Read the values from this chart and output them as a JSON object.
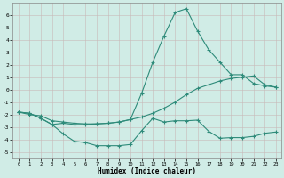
{
  "xlabel": "Humidex (Indice chaleur)",
  "line_color": "#2e8b7a",
  "bg_color": "#d0ece6",
  "grid_color": "#b8d8d0",
  "ylim": [
    -5.5,
    7.0
  ],
  "xlim": [
    -0.5,
    23.5
  ],
  "yticks": [
    -5,
    -4,
    -3,
    -2,
    -1,
    0,
    1,
    2,
    3,
    4,
    5,
    6
  ],
  "xticks": [
    0,
    1,
    2,
    3,
    4,
    5,
    6,
    7,
    8,
    9,
    10,
    11,
    12,
    13,
    14,
    15,
    16,
    17,
    18,
    19,
    20,
    21,
    22,
    23
  ],
  "curve_main_x": [
    0,
    1,
    2,
    3,
    4,
    5,
    6,
    7,
    8,
    9,
    10,
    11,
    12,
    13,
    14,
    15,
    16,
    17,
    18,
    19,
    20,
    21,
    22,
    23
  ],
  "curve_main_y": [
    -1.8,
    -1.9,
    -2.3,
    -2.8,
    -3.55,
    -4.15,
    -4.25,
    -4.5,
    -4.5,
    -4.5,
    -4.4,
    -3.3,
    -2.3,
    -2.6,
    -2.5,
    -2.5,
    -2.45,
    -3.35,
    -3.9,
    -3.85,
    -3.85,
    -3.75,
    -3.5,
    -3.4
  ],
  "curve_peak_x": [
    0,
    1,
    2,
    3,
    4,
    5,
    6,
    7,
    8,
    9,
    10,
    11,
    12,
    13,
    14,
    15,
    16,
    17,
    18,
    19,
    20,
    21,
    22,
    23
  ],
  "curve_peak_y": [
    -1.8,
    -1.9,
    -2.3,
    -2.8,
    -2.7,
    -2.8,
    -2.8,
    -2.75,
    -2.7,
    -2.6,
    -2.4,
    -0.3,
    2.2,
    4.3,
    6.2,
    6.5,
    4.7,
    3.2,
    2.2,
    1.2,
    1.2,
    0.5,
    0.3,
    0.2
  ],
  "curve_diag_x": [
    0,
    1,
    2,
    3,
    4,
    5,
    6,
    7,
    8,
    9,
    10,
    11,
    12,
    13,
    14,
    15,
    16,
    17,
    18,
    19,
    20,
    21,
    22,
    23
  ],
  "curve_diag_y": [
    -1.8,
    -2.0,
    -2.1,
    -2.5,
    -2.6,
    -2.7,
    -2.75,
    -2.75,
    -2.7,
    -2.6,
    -2.4,
    -2.2,
    -1.9,
    -1.5,
    -1.0,
    -0.4,
    0.1,
    0.4,
    0.7,
    0.9,
    1.0,
    1.1,
    0.4,
    0.2
  ]
}
